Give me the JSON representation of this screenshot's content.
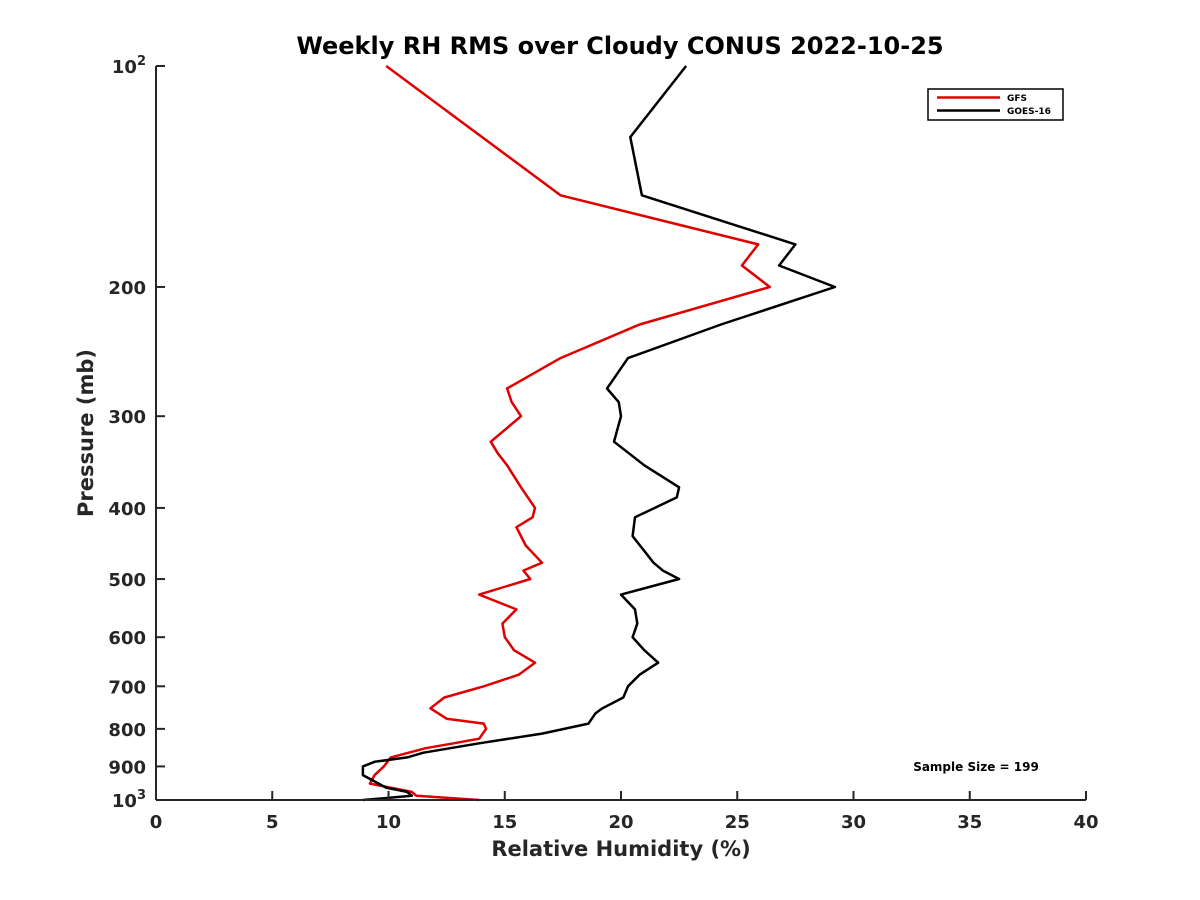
{
  "chart_data": {
    "type": "line",
    "title": "Weekly RH RMS over Cloudy CONUS 2022-10-25",
    "xlabel": "Relative Humidity (%)",
    "ylabel": "Pressure (mb)",
    "xlim": [
      0,
      40
    ],
    "ylim": [
      100,
      1000
    ],
    "y_scale": "log",
    "y_reversed": true,
    "x_ticks": [
      0,
      5,
      10,
      15,
      20,
      25,
      30,
      35,
      40
    ],
    "x_tick_labels": [
      "0",
      "5",
      "10",
      "15",
      "20",
      "25",
      "30",
      "35",
      "40"
    ],
    "y_ticks": [
      100,
      200,
      300,
      400,
      500,
      600,
      700,
      800,
      900,
      1000
    ],
    "y_tick_labels": [
      {
        "base": "10",
        "exp": "2"
      },
      {
        "base": "200",
        "exp": ""
      },
      {
        "base": "300",
        "exp": ""
      },
      {
        "base": "400",
        "exp": ""
      },
      {
        "base": "500",
        "exp": ""
      },
      {
        "base": "600",
        "exp": ""
      },
      {
        "base": "700",
        "exp": ""
      },
      {
        "base": "800",
        "exp": ""
      },
      {
        "base": "900",
        "exp": ""
      },
      {
        "base": "10",
        "exp": "3"
      }
    ],
    "grid": false,
    "legend_position": "top-right",
    "annotation": "Sample Size = 199",
    "series": [
      {
        "name": "GFS",
        "color": "#e00000",
        "points": [
          {
            "x": 9.9,
            "y": 100
          },
          {
            "x": 17.4,
            "y": 150
          },
          {
            "x": 25.9,
            "y": 175
          },
          {
            "x": 25.2,
            "y": 187
          },
          {
            "x": 26.4,
            "y": 200
          },
          {
            "x": 20.8,
            "y": 225
          },
          {
            "x": 17.4,
            "y": 250
          },
          {
            "x": 15.1,
            "y": 275
          },
          {
            "x": 15.3,
            "y": 287
          },
          {
            "x": 15.7,
            "y": 300
          },
          {
            "x": 14.4,
            "y": 325
          },
          {
            "x": 14.7,
            "y": 337
          },
          {
            "x": 15.1,
            "y": 350
          },
          {
            "x": 15.7,
            "y": 375
          },
          {
            "x": 16.3,
            "y": 400
          },
          {
            "x": 16.2,
            "y": 412
          },
          {
            "x": 15.5,
            "y": 425
          },
          {
            "x": 15.9,
            "y": 450
          },
          {
            "x": 16.6,
            "y": 475
          },
          {
            "x": 15.8,
            "y": 487
          },
          {
            "x": 16.1,
            "y": 500
          },
          {
            "x": 13.9,
            "y": 525
          },
          {
            "x": 15.5,
            "y": 550
          },
          {
            "x": 14.9,
            "y": 575
          },
          {
            "x": 15.0,
            "y": 600
          },
          {
            "x": 15.4,
            "y": 625
          },
          {
            "x": 16.3,
            "y": 650
          },
          {
            "x": 15.6,
            "y": 675
          },
          {
            "x": 14.1,
            "y": 700
          },
          {
            "x": 12.4,
            "y": 725
          },
          {
            "x": 11.8,
            "y": 750
          },
          {
            "x": 12.5,
            "y": 775
          },
          {
            "x": 14.1,
            "y": 787
          },
          {
            "x": 14.2,
            "y": 800
          },
          {
            "x": 13.9,
            "y": 825
          },
          {
            "x": 12.8,
            "y": 837
          },
          {
            "x": 11.6,
            "y": 850
          },
          {
            "x": 10.1,
            "y": 875
          },
          {
            "x": 9.8,
            "y": 900
          },
          {
            "x": 9.4,
            "y": 925
          },
          {
            "x": 9.2,
            "y": 950
          },
          {
            "x": 11.0,
            "y": 975
          },
          {
            "x": 11.2,
            "y": 987
          },
          {
            "x": 13.9,
            "y": 1000
          }
        ]
      },
      {
        "name": "GOES-16",
        "color": "#000000",
        "points": [
          {
            "x": 22.8,
            "y": 100
          },
          {
            "x": 20.4,
            "y": 125
          },
          {
            "x": 20.9,
            "y": 150
          },
          {
            "x": 27.5,
            "y": 175
          },
          {
            "x": 26.8,
            "y": 187
          },
          {
            "x": 29.2,
            "y": 200
          },
          {
            "x": 24.3,
            "y": 225
          },
          {
            "x": 20.3,
            "y": 250
          },
          {
            "x": 19.4,
            "y": 275
          },
          {
            "x": 19.9,
            "y": 287
          },
          {
            "x": 20.0,
            "y": 300
          },
          {
            "x": 19.7,
            "y": 325
          },
          {
            "x": 21.0,
            "y": 350
          },
          {
            "x": 22.5,
            "y": 375
          },
          {
            "x": 22.4,
            "y": 387
          },
          {
            "x": 20.6,
            "y": 412
          },
          {
            "x": 20.5,
            "y": 437
          },
          {
            "x": 21.4,
            "y": 475
          },
          {
            "x": 21.8,
            "y": 487
          },
          {
            "x": 22.5,
            "y": 500
          },
          {
            "x": 20.0,
            "y": 525
          },
          {
            "x": 20.6,
            "y": 550
          },
          {
            "x": 20.7,
            "y": 575
          },
          {
            "x": 20.5,
            "y": 600
          },
          {
            "x": 21.0,
            "y": 625
          },
          {
            "x": 21.6,
            "y": 650
          },
          {
            "x": 20.8,
            "y": 675
          },
          {
            "x": 20.3,
            "y": 700
          },
          {
            "x": 20.1,
            "y": 725
          },
          {
            "x": 19.2,
            "y": 750
          },
          {
            "x": 18.9,
            "y": 762
          },
          {
            "x": 18.6,
            "y": 787
          },
          {
            "x": 16.6,
            "y": 812
          },
          {
            "x": 13.9,
            "y": 837
          },
          {
            "x": 11.5,
            "y": 862
          },
          {
            "x": 10.8,
            "y": 875
          },
          {
            "x": 9.4,
            "y": 887
          },
          {
            "x": 8.9,
            "y": 900
          },
          {
            "x": 8.9,
            "y": 925
          },
          {
            "x": 9.9,
            "y": 962
          },
          {
            "x": 10.8,
            "y": 975
          },
          {
            "x": 11.0,
            "y": 987
          },
          {
            "x": 8.9,
            "y": 1000
          }
        ]
      }
    ]
  }
}
